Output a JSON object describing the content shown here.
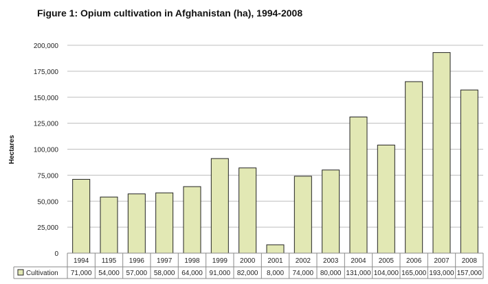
{
  "chart_data": {
    "type": "bar",
    "title": "Figure 1: Opium cultivation in Afghanistan (ha), 1994-2008",
    "ylabel": "Hectares",
    "xlabel": "",
    "ylim": [
      0,
      200000
    ],
    "yticks": [
      0,
      25000,
      50000,
      75000,
      100000,
      125000,
      150000,
      175000,
      200000
    ],
    "ytick_labels": [
      "0",
      "25,000",
      "50,000",
      "75,000",
      "100,000",
      "125,000",
      "150,000",
      "175,000",
      "200,000"
    ],
    "categories": [
      "1994",
      "1195",
      "1996",
      "1997",
      "1998",
      "1999",
      "2000",
      "2001",
      "2002",
      "2003",
      "2004",
      "2005",
      "2006",
      "2007",
      "2008"
    ],
    "series": [
      {
        "name": "Cultivation",
        "values": [
          71000,
          54000,
          57000,
          58000,
          64000,
          91000,
          82000,
          8000,
          74000,
          80000,
          131000,
          104000,
          165000,
          193000,
          157000
        ],
        "value_labels": [
          "71,000",
          "54,000",
          "57,000",
          "58,000",
          "64,000",
          "91,000",
          "82,000",
          "8,000",
          "74,000",
          "80,000",
          "131,000",
          "104,000",
          "165,000",
          "193,000",
          "157,000"
        ]
      }
    ],
    "grid": true,
    "legend": "bottom-left data table",
    "colors": {
      "bar_fill": "#e2e8b4",
      "bar_stroke": "#222222",
      "grid": "#bdbdbd",
      "table_border": "#8a8a8a"
    }
  }
}
